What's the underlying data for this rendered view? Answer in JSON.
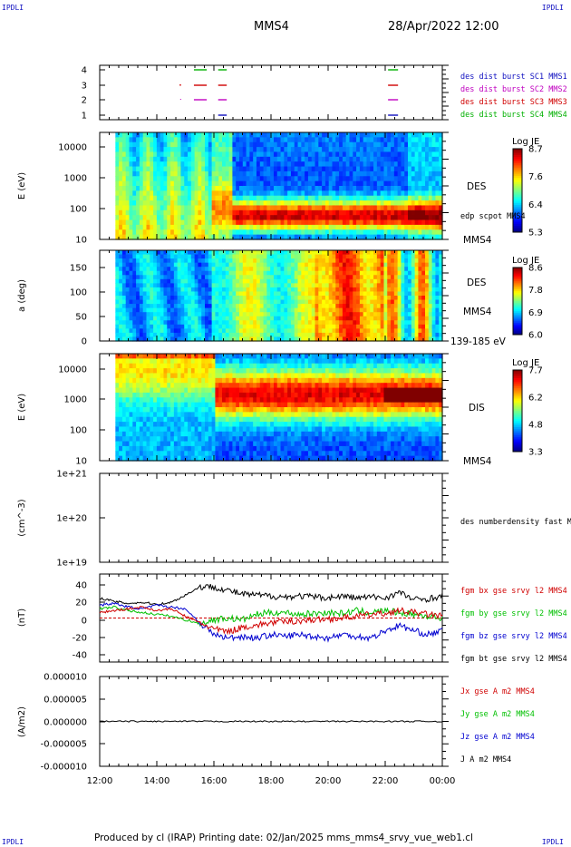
{
  "corners": {
    "tl": "IPDLI",
    "tr": "IPDLI",
    "bl": "IPDLI",
    "br": "IPDLI"
  },
  "header": {
    "spacecraft": "MMS4",
    "date": "28/Apr/2022 12:00"
  },
  "footer": "Produced by cl (IRAP)   Printing date: 02/Jan/2025   mms_mms4_srvy_vue_web1.cl",
  "chart_data": {
    "type": "multi-panel time series",
    "x_tick_labels": [
      "12:00",
      "14:00",
      "16:00",
      "18:00",
      "20:00",
      "22:00",
      "00:00"
    ],
    "x_range_hours": [
      12,
      24
    ],
    "panels": [
      {
        "id": "burst",
        "type": "timeline",
        "y_ticks": [
          "4",
          "3",
          "2",
          "1"
        ],
        "legend": [
          {
            "label": "des dist burst SC1 MMS1",
            "color": "#1010c0",
            "row": 1
          },
          {
            "label": "des dist burst SC2 MMS2",
            "color": "#c000c0",
            "row": 2
          },
          {
            "label": "des dist burst SC3 MMS3",
            "color": "#d00000",
            "row": 3
          },
          {
            "label": "des dist burst SC4 MMS4",
            "color": "#00b000",
            "row": 4
          }
        ],
        "intervals_hours": [
          [
            15.3,
            15.75
          ],
          [
            16.15,
            16.45
          ],
          [
            22.1,
            22.45
          ]
        ]
      },
      {
        "id": "des-energy",
        "type": "heatmap",
        "ylabel": "E (eV)",
        "y_ticks": [
          "10000",
          "1000",
          "100",
          "10"
        ],
        "side_label": "DES",
        "side_note": "edp scpot MMS4",
        "bottom_label": "MMS4",
        "colorbar": {
          "title": "Log JE",
          "ticks": [
            "8.7",
            "7.6",
            "6.4",
            "5.3"
          ]
        }
      },
      {
        "id": "des-pitch",
        "type": "heatmap",
        "ylabel": "a (deg)",
        "y_ticks": [
          "150",
          "100",
          "50",
          "0"
        ],
        "side_label": "DES",
        "side_note": "MMS4",
        "bottom_label": "139-185 eV",
        "colorbar": {
          "title": "Log JE",
          "ticks": [
            "8.6",
            "7.8",
            "6.9",
            "6.0"
          ]
        }
      },
      {
        "id": "dis-energy",
        "type": "heatmap",
        "ylabel": "E (eV)",
        "y_ticks": [
          "10000",
          "1000",
          "100",
          "10"
        ],
        "side_label": "DIS",
        "bottom_label": "MMS4",
        "colorbar": {
          "title": "Log JE",
          "ticks": [
            "7.7",
            "6.2",
            "4.8",
            "3.3"
          ]
        }
      },
      {
        "id": "density",
        "type": "line",
        "ylabel": "(cm^-3)",
        "y_ticks": [
          "1e+21",
          "1e+20",
          "1e+19"
        ],
        "legend": [
          {
            "label": "des numberdensity fast M",
            "color": "#000000"
          }
        ]
      },
      {
        "id": "magnetic-field",
        "type": "line",
        "ylabel": "(nT)",
        "y_ticks": [
          "40",
          "20",
          "0",
          "-20",
          "-40"
        ],
        "ylim": [
          -48,
          48
        ],
        "legend": [
          {
            "label": "fgm bx gse srvy l2 MMS4",
            "color": "#d00000"
          },
          {
            "label": "fgm by gse srvy l2 MMS4",
            "color": "#00c000"
          },
          {
            "label": "fgm bz gse srvy l2 MMS4",
            "color": "#0000d0"
          },
          {
            "label": "fgm bt gse srvy l2 MMS4",
            "color": "#000000"
          }
        ],
        "series": [
          {
            "name": "fgm bt gse srvy l2 MMS4",
            "x": [
              12,
              12.5,
              13,
              13.5,
              14,
              14.5,
              15,
              15.5,
              16,
              16.5,
              17,
              17.5,
              18,
              18.5,
              19,
              19.5,
              20,
              20.5,
              21,
              21.5,
              22,
              22.5,
              23,
              23.5,
              24
            ],
            "values": [
              22,
              18,
              16,
              17,
              15,
              17,
              25,
              34,
              34,
              30,
              26,
              25,
              24,
              23,
              24,
              23,
              22,
              24,
              22,
              23,
              22,
              28,
              20,
              21,
              24
            ]
          },
          {
            "name": "fgm bx gse srvy l2 MMS4",
            "x": [
              12,
              12.5,
              13,
              13.5,
              14,
              14.5,
              15,
              15.5,
              16,
              16.5,
              17,
              17.5,
              18,
              18.5,
              19,
              19.5,
              20,
              20.5,
              21,
              21.5,
              22,
              22.5,
              23,
              23.5,
              24
            ],
            "values": [
              6,
              8,
              10,
              12,
              8,
              10,
              2,
              -5,
              -12,
              -15,
              -10,
              -8,
              -5,
              -4,
              -3,
              -2,
              -1,
              0,
              2,
              4,
              5,
              8,
              6,
              4,
              2
            ]
          },
          {
            "name": "fgm by gse srvy l2 MMS4",
            "x": [
              12,
              12.5,
              13,
              13.5,
              14,
              14.5,
              15,
              15.5,
              16,
              16.5,
              17,
              17.5,
              18,
              18.5,
              19,
              19.5,
              20,
              20.5,
              21,
              21.5,
              22,
              22.5,
              23,
              23.5,
              24
            ],
            "values": [
              10,
              12,
              8,
              6,
              4,
              2,
              -2,
              -6,
              -2,
              0,
              -2,
              4,
              6,
              6,
              4,
              5,
              6,
              5,
              8,
              6,
              8,
              6,
              4,
              2,
              0
            ]
          },
          {
            "name": "fgm bz gse srvy l2 MMS4",
            "x": [
              12,
              12.5,
              13,
              13.5,
              14,
              14.5,
              15,
              15.5,
              16,
              16.5,
              17,
              17.5,
              18,
              18.5,
              19,
              19.5,
              20,
              20.5,
              21,
              21.5,
              22,
              22.5,
              23,
              23.5,
              24
            ],
            "values": [
              14,
              16,
              12,
              10,
              14,
              12,
              10,
              -5,
              -18,
              -22,
              -20,
              -22,
              -18,
              -20,
              -18,
              -20,
              -22,
              -18,
              -20,
              -22,
              -14,
              -8,
              -14,
              -18,
              -14
            ]
          }
        ]
      },
      {
        "id": "current",
        "type": "line",
        "ylabel": "(A/m2)",
        "y_ticks": [
          "0.000010",
          "0.000005",
          "0.000000",
          "-0.000005",
          "-0.000010"
        ],
        "ylim": [
          -1e-05,
          1e-05
        ],
        "legend": [
          {
            "label": "Jx gse A m2 MMS4",
            "color": "#d00000"
          },
          {
            "label": "Jy gse A m2 MMS4",
            "color": "#00c000"
          },
          {
            "label": "Jz gse A m2 MMS4",
            "color": "#0000d0"
          },
          {
            "label": "J A m2 MMS4",
            "color": "#000000"
          }
        ],
        "series": [
          {
            "name": "J A m2 MMS4",
            "x": [
              12,
              14,
              16,
              18,
              20,
              22,
              24
            ],
            "values": [
              0,
              0,
              0,
              0,
              0,
              0,
              0
            ]
          }
        ]
      }
    ]
  }
}
